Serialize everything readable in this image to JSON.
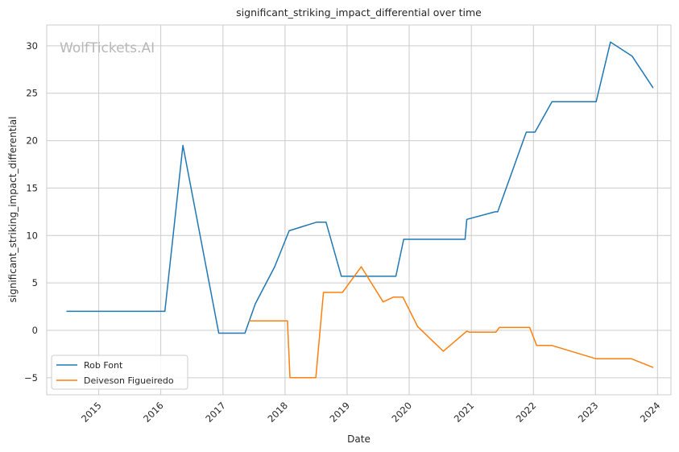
{
  "chart_data": {
    "type": "line",
    "title": "significant_striking_impact_differential over time",
    "xlabel": "Date",
    "ylabel": "significant_striking_impact_differential",
    "watermark": "WolfTickets.AI",
    "x_ticks": [
      "2015",
      "2016",
      "2017",
      "2018",
      "2019",
      "2020",
      "2021",
      "2022",
      "2023",
      "2024"
    ],
    "y_ticks": [
      "−5",
      "0",
      "5",
      "10",
      "15",
      "20",
      "25",
      "30"
    ],
    "xlim": [
      "2014-03-01",
      "2024-03-20"
    ],
    "ylim": [
      -6.8,
      32.2
    ],
    "grid": true,
    "legend_position": "lower-left",
    "series": [
      {
        "name": "Rob Font",
        "color": "#1f77b4",
        "points": [
          [
            "2014-06-28",
            2.0
          ],
          [
            "2016-01-25",
            2.0
          ],
          [
            "2016-05-10",
            19.5
          ],
          [
            "2016-12-07",
            -0.3
          ],
          [
            "2017-05-10",
            -0.3
          ],
          [
            "2017-07-10",
            2.8
          ],
          [
            "2017-11-01",
            6.7
          ],
          [
            "2018-01-25",
            10.5
          ],
          [
            "2018-07-05",
            11.4
          ],
          [
            "2018-08-30",
            11.4
          ],
          [
            "2018-11-28",
            5.7
          ],
          [
            "2019-10-15",
            5.7
          ],
          [
            "2019-11-30",
            9.6
          ],
          [
            "2020-11-25",
            9.6
          ],
          [
            "2020-12-05",
            11.7
          ],
          [
            "2021-05-20",
            12.5
          ],
          [
            "2021-06-05",
            12.5
          ],
          [
            "2021-11-20",
            20.9
          ],
          [
            "2022-01-10",
            20.9
          ],
          [
            "2022-04-20",
            24.1
          ],
          [
            "2023-01-05",
            24.1
          ],
          [
            "2023-03-30",
            30.4
          ],
          [
            "2023-08-05",
            28.9
          ],
          [
            "2023-12-05",
            25.6
          ]
        ]
      },
      {
        "name": "Deiveson Figueiredo",
        "color": "#ff7f0e",
        "points": [
          [
            "2017-06-05",
            1.0
          ],
          [
            "2018-01-15",
            1.0
          ],
          [
            "2018-01-30",
            -5.0
          ],
          [
            "2018-07-01",
            -5.0
          ],
          [
            "2018-08-15",
            4.0
          ],
          [
            "2018-12-05",
            4.0
          ],
          [
            "2019-03-25",
            6.7
          ],
          [
            "2019-08-01",
            3.0
          ],
          [
            "2019-09-30",
            3.5
          ],
          [
            "2019-11-25",
            3.5
          ],
          [
            "2020-02-20",
            0.4
          ],
          [
            "2020-07-20",
            -2.2
          ],
          [
            "2020-12-05",
            -0.1
          ],
          [
            "2020-12-20",
            -0.2
          ],
          [
            "2021-05-25",
            -0.2
          ],
          [
            "2021-06-15",
            0.3
          ],
          [
            "2021-12-10",
            0.3
          ],
          [
            "2022-01-20",
            -1.6
          ],
          [
            "2022-04-20",
            -1.6
          ],
          [
            "2023-01-05",
            -3.0
          ],
          [
            "2023-08-01",
            -3.0
          ],
          [
            "2023-12-05",
            -3.9
          ]
        ]
      }
    ]
  }
}
